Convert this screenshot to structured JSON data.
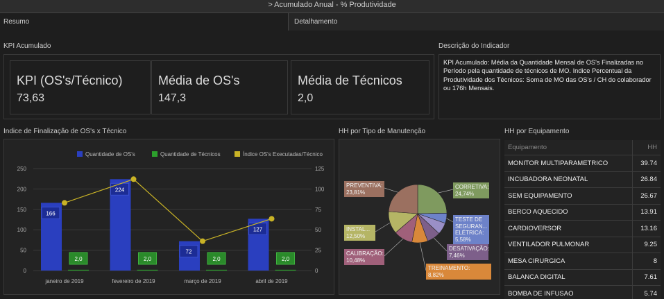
{
  "header": {
    "title": "> Acumulado Anual - % Produtividade"
  },
  "tabs": [
    "Resumo",
    "Detalhamento"
  ],
  "kpi_panel": {
    "title": "KPI Acumulado",
    "cards": [
      {
        "label": "KPI (OS's/Técnico)",
        "value": "73,63"
      },
      {
        "label": "Média de OS's",
        "value": "147,3"
      },
      {
        "label": "Média de Técnicos",
        "value": "2,0"
      }
    ]
  },
  "description": {
    "title": "Descrição do Indicador",
    "text": "KPI Acumulado: Média da Quantidade Mensal de OS's Finalizadas no Período pela quantidade de técnicos de MO. Indice Percentual da Produtividade dos Técnicos: Soma de MO das OS's / CH do colaborador ou 176h Mensais."
  },
  "chart_data": [
    {
      "type": "combo",
      "title": "Indice de Finalização de OS's x Técnico",
      "categories": [
        "janeiro de 2019",
        "fevereiro de 2019",
        "março de 2019",
        "abril de 2019"
      ],
      "series": [
        {
          "name": "Quantidade de OS's",
          "type": "bar",
          "color": "#2a3fbf",
          "values": [
            166,
            224,
            72,
            127
          ]
        },
        {
          "name": "Quantidade de Técnicos",
          "type": "bar",
          "color": "#2ca02c",
          "values": [
            2,
            2,
            2,
            2
          ],
          "value_labels": [
            "2,0",
            "2,0",
            "2,0",
            "2,0"
          ]
        },
        {
          "name": "Índice OS's Executadas/Técnico",
          "type": "line",
          "axis": "y2",
          "color": "#c9b326",
          "values": [
            83,
            112,
            36,
            63.5
          ]
        }
      ],
      "ylim": [
        0,
        250
      ],
      "yticks": [
        0,
        50,
        100,
        150,
        200,
        250
      ],
      "y2lim": [
        0,
        125
      ],
      "y2ticks": [
        0,
        25,
        50,
        75,
        100,
        125
      ],
      "grid": true,
      "legend": "top"
    },
    {
      "type": "pie",
      "title": "HH por Tipo de Manutenção",
      "categories": [
        "CORRETIVA:",
        "TESTE DE SEGURAN... ELÉTRICA:",
        null,
        "DESATIVAÇÃO:",
        "TREINAMENTO:",
        "CALIBRAÇÃO:",
        "INSTAL...",
        "PREVENTIVA:"
      ],
      "values": [
        24.74,
        5.58,
        6.61,
        7.46,
        8.82,
        10.48,
        12.5,
        23.81
      ],
      "value_labels": [
        "24,74%",
        "5,58%",
        null,
        "7,46%",
        "8,82%",
        "10,48%",
        "12,50%",
        "23,81%"
      ],
      "colors": [
        "#7f9a5f",
        "#6d82c9",
        "#9a8fc7",
        "#7d5f8a",
        "#d9883a",
        "#a0607a",
        "#b5b565",
        "#9b7060"
      ]
    }
  ],
  "table": {
    "title": "HH por Equipamento",
    "columns": [
      "Equipamento",
      "HH"
    ],
    "rows": [
      [
        "MONITOR MULTIPARAMETRICO",
        "39.74"
      ],
      [
        "INCUBADORA NEONATAL",
        "26.84"
      ],
      [
        "SEM EQUIPAMENTO",
        "26.67"
      ],
      [
        "BERCO AQUECIDO",
        "13.91"
      ],
      [
        "CARDIOVERSOR",
        "13.16"
      ],
      [
        "VENTILADOR PULMONAR",
        "9.25"
      ],
      [
        "MESA CIRURGICA",
        "8"
      ],
      [
        "BALANCA DIGITAL",
        "7.61"
      ],
      [
        "BOMBA DE INFUSAO",
        "5.74"
      ]
    ]
  }
}
